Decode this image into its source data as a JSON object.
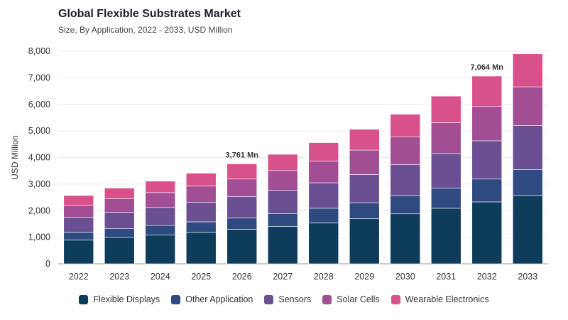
{
  "header": {
    "title": "Global Flexible Substrates Market",
    "subtitle": "Size, By Application, 2022 - 2033, USD Million"
  },
  "chart_data": {
    "type": "bar",
    "stacked": true,
    "title": "Global Flexible Substrates Market",
    "subtitle": "Size, By Application, 2022 - 2033, USD Million",
    "xlabel": "",
    "ylabel": "USD Million",
    "ylim": [
      0,
      8000
    ],
    "yticks": [
      0,
      1000,
      2000,
      3000,
      4000,
      5000,
      6000,
      7000,
      8000
    ],
    "ytick_labels": [
      "0",
      "1,000",
      "2,000",
      "3,000",
      "4,000",
      "5,000",
      "6,000",
      "7,000",
      "8,000"
    ],
    "grid": true,
    "legend_position": "bottom",
    "categories": [
      "2022",
      "2023",
      "2024",
      "2025",
      "2026",
      "2027",
      "2028",
      "2029",
      "2030",
      "2031",
      "2032",
      "2033"
    ],
    "series": [
      {
        "name": "Flexible Displays",
        "color": "#0e3d5c",
        "values": [
          900,
          1000,
          1090,
          1190,
          1300,
          1410,
          1540,
          1700,
          1880,
          2090,
          2330,
          2570
        ]
      },
      {
        "name": "Other Application",
        "color": "#2f4a80",
        "values": [
          290,
          320,
          350,
          390,
          430,
          480,
          550,
          600,
          690,
          760,
          860,
          980
        ]
      },
      {
        "name": "Sensors",
        "color": "#6a4f92",
        "values": [
          560,
          620,
          680,
          740,
          800,
          880,
          960,
          1060,
          1160,
          1300,
          1440,
          1650
        ]
      },
      {
        "name": "Solar Cells",
        "color": "#a14e94",
        "values": [
          460,
          510,
          560,
          610,
          660,
          740,
          820,
          920,
          1040,
          1160,
          1290,
          1460
        ]
      },
      {
        "name": "Wearable Electronics",
        "color": "#d9518a",
        "values": [
          360,
          400,
          430,
          480,
          571,
          610,
          690,
          780,
          860,
          1000,
          1144,
          1240
        ]
      }
    ],
    "annotations": [
      {
        "category": "2026",
        "text": "3,761 Mn"
      },
      {
        "category": "2032",
        "text": "7,064 Mn"
      }
    ]
  }
}
